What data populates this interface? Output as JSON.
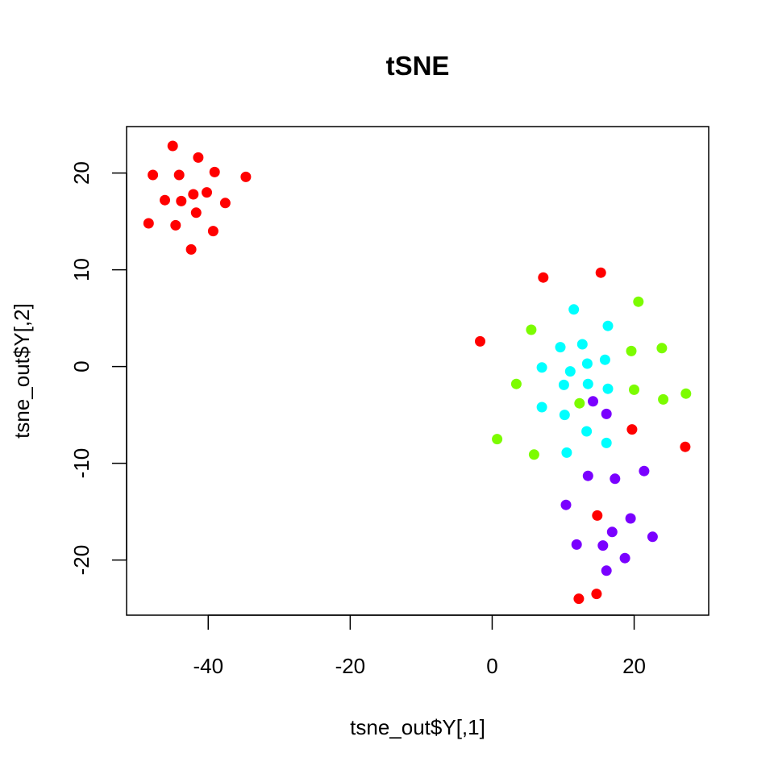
{
  "chart_data": {
    "type": "scatter",
    "title": "tSNE",
    "xlabel": "tsne_out$Y[,1]",
    "ylabel": "tsne_out$Y[,2]",
    "xlim": [
      -51.5,
      30.5
    ],
    "ylim": [
      -25.7,
      24.8
    ],
    "xticks": [
      -40,
      -20,
      0,
      20
    ],
    "yticks": [
      -20,
      -10,
      0,
      10,
      20
    ],
    "grid": false,
    "legend": "none",
    "series": [
      {
        "color": "#ff0000",
        "points": [
          [
            -45,
            22.8
          ],
          [
            -41.4,
            21.6
          ],
          [
            -47.8,
            19.8
          ],
          [
            -44.1,
            19.8
          ],
          [
            -39.1,
            20.1
          ],
          [
            -34.7,
            19.6
          ],
          [
            -46.1,
            17.2
          ],
          [
            -43.8,
            17.1
          ],
          [
            -42.1,
            17.8
          ],
          [
            -40.2,
            18.0
          ],
          [
            -37.6,
            16.9
          ],
          [
            -41.7,
            15.9
          ],
          [
            -48.4,
            14.8
          ],
          [
            -44.6,
            14.6
          ],
          [
            -39.3,
            14.0
          ],
          [
            -42.4,
            12.1
          ],
          [
            7.2,
            9.2
          ],
          [
            15.3,
            9.7
          ],
          [
            -1.7,
            2.6
          ],
          [
            19.7,
            -6.5
          ],
          [
            27.2,
            -8.3
          ],
          [
            14.8,
            -15.4
          ],
          [
            14.7,
            -23.5
          ],
          [
            12.2,
            -24.0
          ]
        ]
      },
      {
        "color": "#7cfc00",
        "points": [
          [
            20.6,
            6.7
          ],
          [
            5.5,
            3.8
          ],
          [
            19.6,
            1.6
          ],
          [
            23.9,
            1.9
          ],
          [
            3.4,
            -1.8
          ],
          [
            20,
            -2.4
          ],
          [
            24.1,
            -3.4
          ],
          [
            27.3,
            -2.8
          ],
          [
            12.3,
            -3.8
          ],
          [
            0.7,
            -7.5
          ],
          [
            5.9,
            -9.1
          ]
        ]
      },
      {
        "color": "#00ffff",
        "points": [
          [
            11.5,
            5.9
          ],
          [
            16.3,
            4.2
          ],
          [
            9.6,
            2.0
          ],
          [
            12.7,
            2.3
          ],
          [
            13.4,
            0.3
          ],
          [
            15.9,
            0.7
          ],
          [
            7.0,
            -0.1
          ],
          [
            11.0,
            -0.5
          ],
          [
            10.1,
            -1.9
          ],
          [
            13.5,
            -1.8
          ],
          [
            16.3,
            -2.3
          ],
          [
            7.0,
            -4.2
          ],
          [
            10.2,
            -5.0
          ],
          [
            13.3,
            -6.7
          ],
          [
            16.1,
            -7.9
          ],
          [
            10.5,
            -8.9
          ]
        ]
      },
      {
        "color": "#7a00ff",
        "points": [
          [
            14.2,
            -3.6
          ],
          [
            16.1,
            -4.9
          ],
          [
            13.5,
            -11.3
          ],
          [
            17.3,
            -11.6
          ],
          [
            21.4,
            -10.8
          ],
          [
            10.4,
            -14.3
          ],
          [
            19.5,
            -15.7
          ],
          [
            16.9,
            -17.1
          ],
          [
            22.6,
            -17.6
          ],
          [
            11.9,
            -18.4
          ],
          [
            15.6,
            -18.5
          ],
          [
            18.7,
            -19.8
          ],
          [
            16.1,
            -21.1
          ]
        ]
      }
    ]
  }
}
